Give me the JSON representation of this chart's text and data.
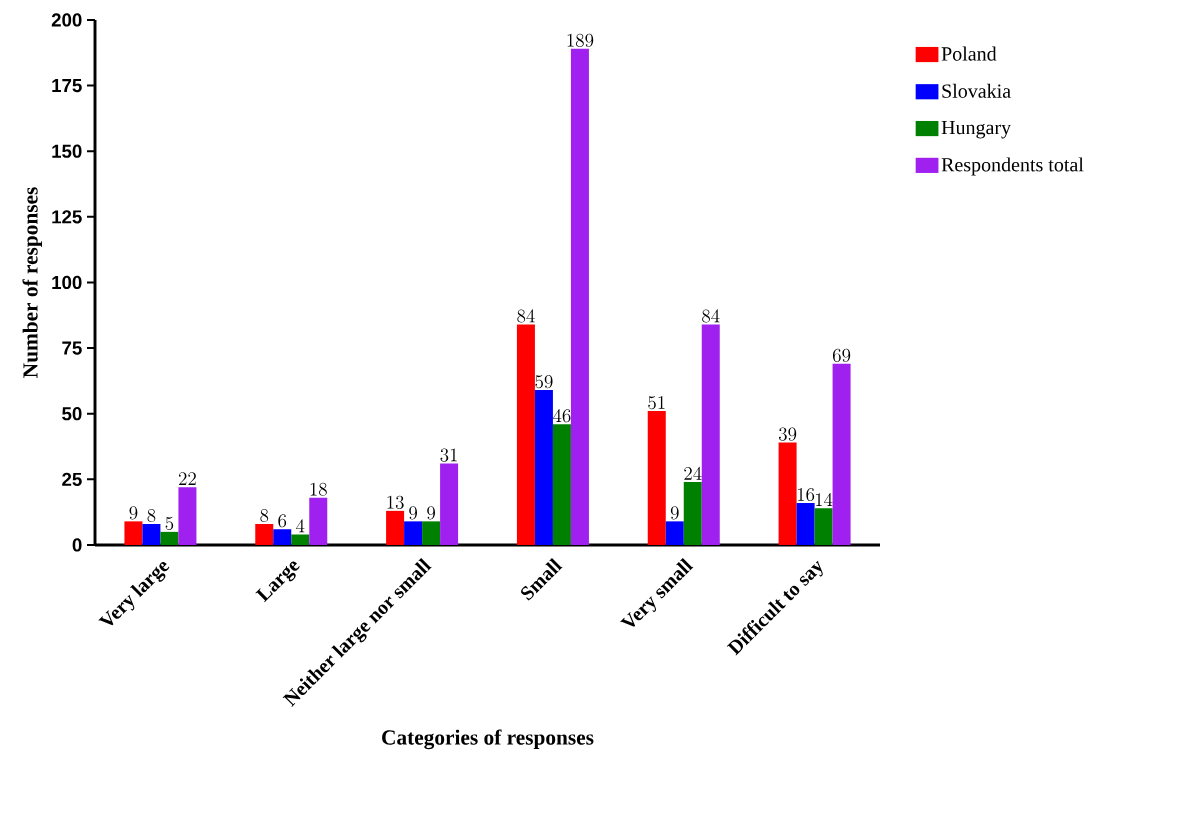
{
  "chart_data": {
    "type": "bar",
    "xlabel": "Categories of responses",
    "ylabel": "Number of responses",
    "categories": [
      "Very large",
      "Large",
      "Neither large nor small",
      "Small",
      "Very small",
      "Difficult to say"
    ],
    "series": [
      {
        "name": "Poland",
        "color": "#ff0000",
        "values": [
          9,
          8,
          13,
          84,
          51,
          39
        ]
      },
      {
        "name": "Slovakia",
        "color": "#0000ff",
        "values": [
          8,
          6,
          9,
          59,
          9,
          16
        ]
      },
      {
        "name": "Hungary",
        "color": "#008000",
        "values": [
          5,
          4,
          9,
          46,
          24,
          14
        ]
      },
      {
        "name": "Respondents total",
        "color": "#a020f0",
        "values": [
          22,
          18,
          31,
          189,
          84,
          69
        ]
      }
    ],
    "ylim": [
      0,
      200
    ],
    "yticks": [
      0,
      25,
      50,
      75,
      100,
      125,
      150,
      175,
      200
    ],
    "grid": false,
    "legend": "top right",
    "data_labels": true
  }
}
